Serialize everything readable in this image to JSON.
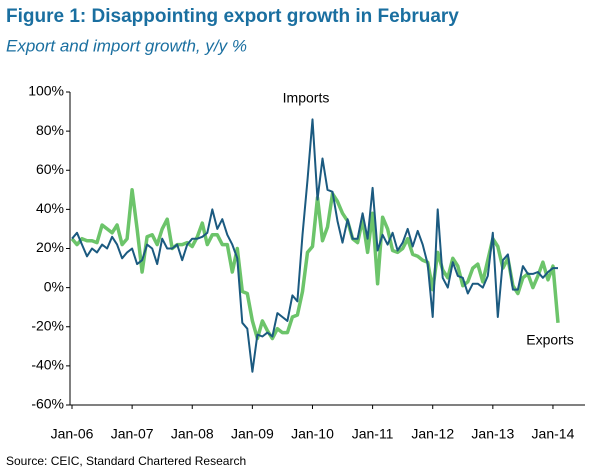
{
  "chart_data": {
    "type": "line",
    "title": "Figure 1: Disappointing export growth in February",
    "subtitle": "Export and import growth, y/y %",
    "source": "Source: CEIC, Standard Chartered Research",
    "annotations": [
      "Imports",
      "Exports"
    ],
    "categories": [
      "Jan-06",
      null,
      null,
      null,
      null,
      null,
      null,
      null,
      null,
      null,
      null,
      null,
      "Jan-07",
      null,
      null,
      null,
      null,
      null,
      null,
      null,
      null,
      null,
      null,
      null,
      "Jan-08",
      null,
      null,
      null,
      null,
      null,
      null,
      null,
      null,
      null,
      null,
      null,
      "Jan-09",
      null,
      null,
      null,
      null,
      null,
      null,
      null,
      null,
      null,
      null,
      null,
      "Jan-10",
      null,
      null,
      null,
      null,
      null,
      null,
      null,
      null,
      null,
      null,
      null,
      "Jan-11",
      null,
      null,
      null,
      null,
      null,
      null,
      null,
      null,
      null,
      null,
      null,
      "Jan-12",
      null,
      null,
      null,
      null,
      null,
      null,
      null,
      null,
      null,
      null,
      null,
      "Jan-13",
      null,
      null,
      null,
      null,
      null,
      null,
      null,
      null,
      null,
      null,
      null,
      "Jan-14",
      null
    ],
    "series": [
      {
        "name": "Exports",
        "color": "#6cc46a",
        "width": 3.5,
        "values": [
          25,
          22,
          25,
          24,
          24,
          23,
          32,
          30,
          28,
          32,
          22,
          25,
          50,
          30,
          8,
          26,
          27,
          22,
          30,
          35,
          20,
          22,
          22,
          23,
          21,
          26,
          33,
          22,
          27,
          27,
          22,
          22,
          8,
          20,
          -2,
          -3,
          -17,
          -26,
          -17,
          -22,
          -26,
          -21,
          -23,
          -23,
          -15,
          -14,
          -2,
          18,
          21,
          46,
          24,
          31,
          48,
          44,
          38,
          34,
          25,
          23,
          35,
          18,
          38,
          2,
          36,
          30,
          19,
          18,
          20,
          25,
          17,
          16,
          14,
          13,
          -1,
          18,
          9,
          5,
          15,
          11,
          1,
          3,
          10,
          12,
          3,
          14,
          25,
          21,
          10,
          15,
          1,
          -3,
          5,
          7,
          0,
          6,
          13,
          4,
          11,
          -18
        ]
      },
      {
        "name": "Imports",
        "color": "#1b5a80",
        "width": 2,
        "values": [
          25,
          28,
          22,
          16,
          20,
          18,
          22,
          20,
          26,
          22,
          15,
          18,
          20,
          12,
          14,
          22,
          20,
          12,
          25,
          20,
          20,
          22,
          14,
          22,
          25,
          25,
          26,
          28,
          40,
          30,
          35,
          27,
          22,
          15,
          -18,
          -21,
          -43,
          -24,
          -25,
          -23,
          -25,
          -13,
          -15,
          -17,
          -4,
          -7,
          27,
          55,
          86,
          45,
          66,
          50,
          49,
          34,
          23,
          35,
          25,
          25,
          38,
          25,
          51,
          19,
          27,
          22,
          28,
          19,
          23,
          30,
          21,
          29,
          22,
          12,
          -15,
          40,
          5,
          0,
          13,
          6,
          5,
          -3,
          2,
          2,
          0,
          6,
          28,
          -15,
          14,
          17,
          -1,
          -1,
          11,
          7,
          7,
          8,
          5,
          8,
          10,
          10
        ]
      }
    ],
    "ylim": [
      -60,
      100
    ],
    "yticks": [
      {
        "value": -60,
        "label": "-60%"
      },
      {
        "value": -40,
        "label": "-40%"
      },
      {
        "value": -20,
        "label": "-20%"
      },
      {
        "value": 0,
        "label": "0%"
      },
      {
        "value": 20,
        "label": "20%"
      },
      {
        "value": 40,
        "label": "40%"
      },
      {
        "value": 60,
        "label": "60%"
      },
      {
        "value": 80,
        "label": "80%"
      },
      {
        "value": 100,
        "label": "100%"
      }
    ],
    "grid": false
  }
}
